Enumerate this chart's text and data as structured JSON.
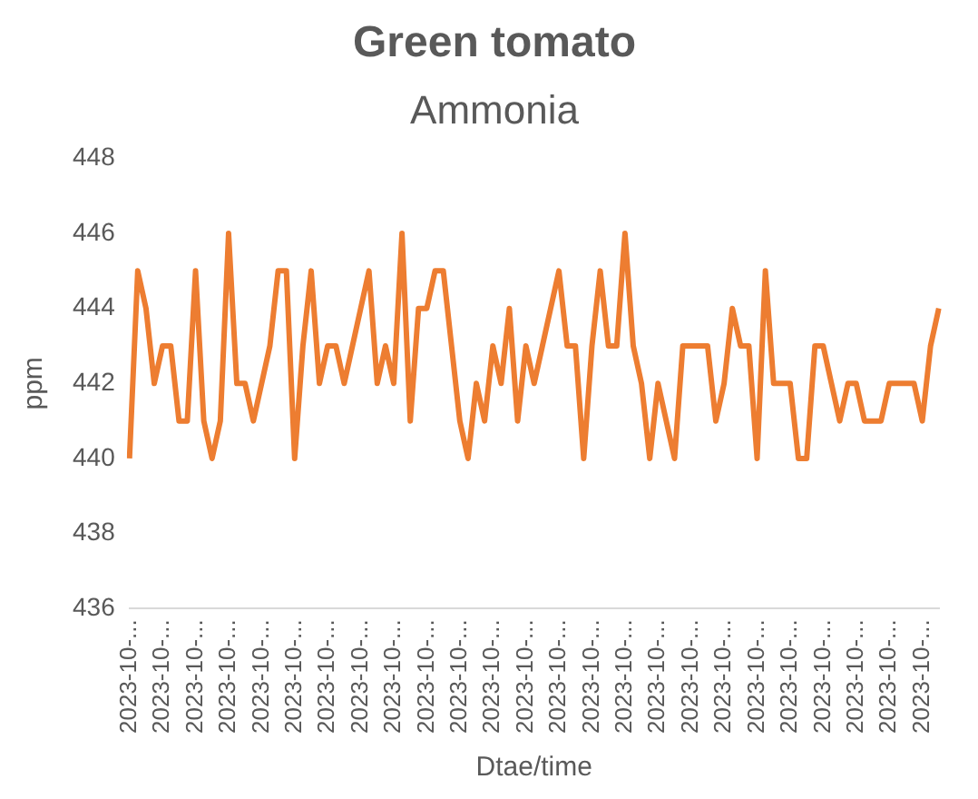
{
  "chart_data": {
    "type": "line",
    "title": "Green tomato",
    "subtitle": "Ammonia",
    "xlabel": "Dtae/time",
    "ylabel": "ppm",
    "categories": [
      "2023-10-...",
      null,
      null,
      null,
      "2023-10-...",
      null,
      null,
      null,
      "2023-10-...",
      null,
      null,
      null,
      "2023-10-...",
      null,
      null,
      null,
      "2023-10-...",
      null,
      null,
      null,
      "2023-10-...",
      null,
      null,
      null,
      "2023-10-...",
      null,
      null,
      null,
      "2023-10-...",
      null,
      null,
      null,
      "2023-10-...",
      null,
      null,
      null,
      "2023-10-...",
      null,
      null,
      null,
      "2023-10-...",
      null,
      null,
      null,
      "2023-10-...",
      null,
      null,
      null,
      "2023-10-...",
      null,
      null,
      null,
      "2023-10-...",
      null,
      null,
      null,
      "2023-10-...",
      null,
      null,
      null,
      "2023-10-...",
      null,
      null,
      null,
      "2023-10-...",
      null,
      null,
      null,
      "2023-10-...",
      null,
      null,
      null,
      "2023-10-...",
      null,
      null,
      null,
      "2023-10-...",
      null,
      null,
      null,
      "2023-10-...",
      null,
      null,
      null,
      "2023-10-...",
      null,
      null,
      null,
      "2023-10-...",
      null,
      null,
      null,
      "2023-10-...",
      null,
      null,
      null,
      "2023-10-...",
      null,
      null
    ],
    "series": [
      {
        "color": "#ed7d31",
        "values": [
          440,
          445,
          444,
          442,
          443,
          443,
          441,
          441,
          445,
          441,
          440,
          441,
          446,
          442,
          442,
          441,
          442,
          443,
          445,
          445,
          440,
          443,
          445,
          442,
          443,
          443,
          442,
          443,
          444,
          445,
          442,
          443,
          442,
          446,
          441,
          444,
          444,
          445,
          445,
          443,
          441,
          440,
          442,
          441,
          443,
          442,
          444,
          441,
          443,
          442,
          443,
          444,
          445,
          443,
          443,
          440,
          443,
          445,
          443,
          443,
          446,
          443,
          442,
          440,
          442,
          441,
          440,
          443,
          443,
          443,
          443,
          441,
          442,
          444,
          443,
          443,
          440,
          445,
          442,
          442,
          442,
          440,
          440,
          443,
          443,
          442,
          441,
          442,
          442,
          441,
          441,
          441,
          442,
          442,
          442,
          442,
          441,
          443,
          444
        ]
      }
    ],
    "ylim": [
      436,
      448
    ],
    "yticks": [
      436,
      438,
      440,
      442,
      444,
      446,
      448
    ]
  }
}
